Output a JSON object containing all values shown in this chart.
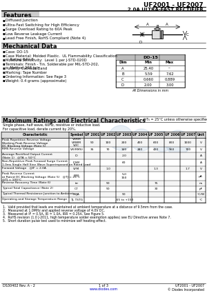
{
  "title_main": "UF2001 - UF2007",
  "title_sub": "2.0A ULTRA-FAST RECTIFIER",
  "features_title": "Features",
  "features": [
    "Diffused Junction",
    "Ultra-Fast Switching for High Efficiency",
    "Surge Overload Rating to 60A Peak",
    "Low Reverse Leakage Current",
    "Lead Free Finish, RoHS Compliant (Note 4)"
  ],
  "mech_title": "Mechanical Data",
  "mech_items": [
    "Case: DO-15",
    "Case Material: Molded Plastic.  UL Flammability Classification\n    Rating 94V-0",
    "Moisture Sensitivity:  Level 1 per J-STD-020D",
    "Terminals: Finish - Tin. Solderable per MIL-STD-202,\n    Method 208 (g)",
    "Polarity: Cathode Band",
    "Marking: Tape Number",
    "Ordering Information: See Page 3",
    "Weight: 0.4 grams (approximate)"
  ],
  "do15_table": {
    "headers": [
      "Dim",
      "Min",
      "Max"
    ],
    "rows": [
      [
        "A",
        "25.40",
        "--"
      ],
      [
        "B",
        "5.59",
        "7.62"
      ],
      [
        "C",
        "0.660",
        "0.889"
      ],
      [
        "D",
        "2.00",
        "3.00"
      ]
    ],
    "note": "All Dimensions in mm"
  },
  "max_ratings_title": "Maximum Ratings and Electrical Characteristics",
  "max_ratings_note": "@T₆ = 25°C unless otherwise specified",
  "single_phase_note": "Single phase, half wave, 60Hz, resistive or inductive load.\nFor capacitive load, derate current by 20%.",
  "table_headers": [
    "Characteristic",
    "Symbol",
    "UF 2001",
    "UF 2002",
    "UF 2003",
    "UF 2004",
    "UF 2005",
    "UF 2006",
    "UF 2007",
    "Unit"
  ],
  "table_rows": [
    [
      "Peak Repetitive Reverse Voltage\nWorking Peak Reverse Voltage\nDC Blocking Voltage (Note 5)",
      "VRRM\nVRWM\nVDC",
      "50",
      "100",
      "200",
      "400",
      "600",
      "800",
      "1000",
      "V"
    ],
    [
      "RMS Reverse Voltage",
      "VR(RMS)",
      "35",
      "70",
      "140",
      "280",
      "420",
      "560",
      "700",
      "V"
    ],
    [
      "Average Rectified Output Current\n(Note 1)   @TA = 50°C",
      "IO",
      "",
      "",
      "2.0",
      "",
      "",
      "",
      "",
      "A"
    ],
    [
      "Non-Repetitive Peak Forward Surge Current\n1.0ms Single Half Sine Wave Superimposed on Rated Load",
      "IFSM",
      "",
      "",
      "60",
      "",
      "",
      "",
      "",
      "A"
    ],
    [
      "Forward Voltage   @IF = 2.0A",
      "VFM",
      "",
      "1.0",
      "",
      "",
      "1.3",
      "",
      "1.7",
      "V"
    ],
    [
      "Peak Reverse Current\nat Rated DC Blocking Voltage (Note 5)   @TJ = 25°C\n@TJ = 100°C",
      "IRM",
      "",
      "",
      "5.0\n150",
      "",
      "",
      "",
      "",
      "μA"
    ],
    [
      "Reverse Recovery Time (Note 6)",
      "trr",
      "",
      "50",
      "",
      "",
      "75",
      "",
      "",
      "ns"
    ],
    [
      "Typical Total Capacitance (Note 2)",
      "CT",
      "",
      "50",
      "",
      "",
      "30",
      "",
      "",
      "pF"
    ],
    [
      "Typical Thermal Resistance Junction to Ambient",
      "RθJA",
      "",
      "",
      "50",
      "",
      "",
      "",
      "",
      "°C/W"
    ],
    [
      "Operating and Storage Temperature Range",
      "TJ, TSTG",
      "",
      "",
      "-65 to +150",
      "",
      "",
      "",
      "",
      "°C"
    ]
  ],
  "notes": [
    "1.  Valid provided that leads are maintained at ambient temperature at a distance of 9.5mm from the case.",
    "2.  Measured at 1.0MHz and applied reverse voltage of 4.0V DC.",
    "3.  Measured at IF = 0.5A, IR = 1.0A, IRR = 0.25A. See Figure 5.",
    "4.  RoHS revision (1.0 J-2011, high temperature solder exemption applies) see EU Directive annex Note 7.",
    "5.  Short duration pulse test used to minimize self heating effect."
  ],
  "footer_left": "DS30402 Rev. A - 2",
  "footer_center": "1 of 3",
  "footer_center2": "www.diodes.com",
  "footer_right": "UF2001 - UF2007",
  "footer_right2": "© Diodes Incorporated",
  "bg_color": "#ffffff",
  "table_header_bg": "#d0d0d0",
  "section_title_bg": "#cccccc"
}
